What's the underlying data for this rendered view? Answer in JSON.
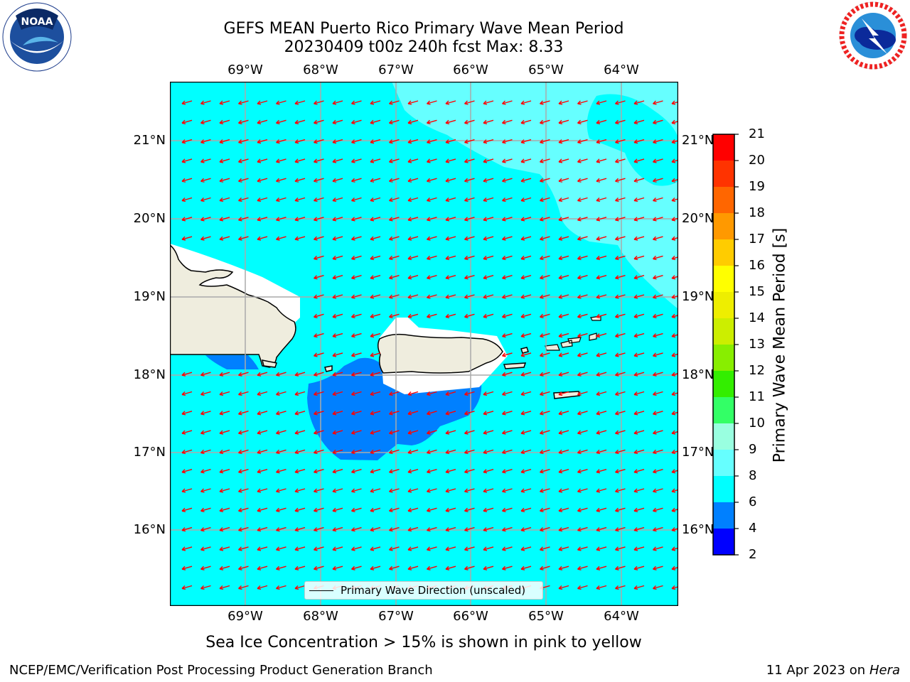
{
  "title": {
    "line1": "GEFS MEAN Puerto Rico Primary Wave Mean Period",
    "line2": "20230409 t00z 240h fcst   Max: 8.33"
  },
  "map": {
    "lon_labels": [
      "69°W",
      "68°W",
      "67°W",
      "66°W",
      "65°W",
      "64°W"
    ],
    "lat_labels": [
      "21°N",
      "20°N",
      "19°N",
      "18°N",
      "17°N",
      "16°N"
    ],
    "arrow_color": "#ff0000",
    "land_color": "#efedde",
    "ocean_color": "#00ffff",
    "shallow_color": "#0080ff",
    "light_color": "#66ffff",
    "grid_color": "#aaaaaa"
  },
  "legend": {
    "label": "Primary Wave Direction (unscaled)"
  },
  "colorbar": {
    "label": "Primary Wave Mean Period [s]",
    "ticks": [
      "2",
      "4",
      "6",
      "8",
      "9",
      "10",
      "11",
      "12",
      "13",
      "14",
      "15",
      "16",
      "17",
      "18",
      "19",
      "20",
      "21"
    ],
    "colors": [
      "#0000ff",
      "#0080ff",
      "#00ffff",
      "#66ffff",
      "#99ffe0",
      "#33ff66",
      "#33ee00",
      "#88ee00",
      "#ccee00",
      "#eeee00",
      "#ffff00",
      "#ffcc00",
      "#ff9900",
      "#ff6600",
      "#ff3300",
      "#ff0000"
    ]
  },
  "caption": "Sea Ice Concentration > 15% is shown in pink to yellow",
  "footer": {
    "left": "NCEP/EMC/Verification Post Processing Product Generation Branch",
    "right_date": "11 Apr 2023 on ",
    "right_host": "Hera"
  }
}
